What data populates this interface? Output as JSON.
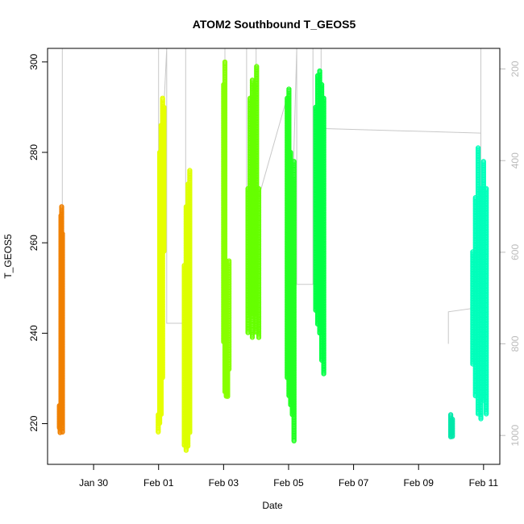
{
  "chart_data": {
    "type": "scatter",
    "title": "ATOM2 Southbound T_GEOS5",
    "xlabel": "Date",
    "ylabel": "T_GEOS5",
    "x_is_date": true,
    "xlim": [
      "2017-01-28T14:00",
      "2017-02-11T12:00"
    ],
    "ylim": [
      211,
      303
    ],
    "x_ticks": [
      {
        "value": "2017-01-30",
        "label": "Jan 30"
      },
      {
        "value": "2017-02-01",
        "label": "Feb 01"
      },
      {
        "value": "2017-02-03",
        "label": "Feb 03"
      },
      {
        "value": "2017-02-05",
        "label": "Feb 05"
      },
      {
        "value": "2017-02-07",
        "label": "Feb 07"
      },
      {
        "value": "2017-02-09",
        "label": "Feb 09"
      },
      {
        "value": "2017-02-11",
        "label": "Feb 11"
      }
    ],
    "y_ticks": [
      220,
      240,
      260,
      280,
      300
    ],
    "right_axis": {
      "label_color": "#bbbbbb",
      "lim": [
        1063,
        155
      ],
      "ticks": [
        200,
        400,
        600,
        800,
        1000
      ],
      "line_color": "#c8c8c8",
      "trace": [
        {
          "x": "2017-01-29T00:54",
          "y": 155
        },
        {
          "x": "2017-01-29T00:54",
          "y": 530
        },
        {
          "x": "2017-01-29T00:54",
          "y": 155
        },
        {
          "x": "2017-02-01T00:00",
          "y": 155
        },
        {
          "x": "2017-02-01T00:00",
          "y": 530
        },
        {
          "x": "2017-02-01T06:00",
          "y": 155
        },
        {
          "x": "2017-02-01T06:00",
          "y": 380
        },
        {
          "x": "2017-02-01T06:00",
          "y": 755
        },
        {
          "x": "2017-02-01T20:00",
          "y": 755
        },
        {
          "x": "2017-02-01T20:00",
          "y": 155
        },
        {
          "x": "2017-02-03T01:00",
          "y": 155
        },
        {
          "x": "2017-02-03T01:00",
          "y": 600
        },
        {
          "x": "2017-02-03T01:00",
          "y": 155
        },
        {
          "x": "2017-02-03T17:00",
          "y": 155
        },
        {
          "x": "2017-02-03T17:00",
          "y": 500
        },
        {
          "x": "2017-02-03T17:00",
          "y": 155
        },
        {
          "x": "2017-02-04T00:00",
          "y": 155
        },
        {
          "x": "2017-02-04T00:00",
          "y": 500
        },
        {
          "x": "2017-02-05T00:00",
          "y": 250
        },
        {
          "x": "2017-02-05T00:00",
          "y": 800
        },
        {
          "x": "2017-02-05T06:00",
          "y": 155
        },
        {
          "x": "2017-02-05T06:00",
          "y": 330
        },
        {
          "x": "2017-02-05T06:00",
          "y": 670
        },
        {
          "x": "2017-02-05T18:00",
          "y": 670
        },
        {
          "x": "2017-02-05T18:00",
          "y": 155
        },
        {
          "x": "2017-02-06T00:00",
          "y": 155
        },
        {
          "x": "2017-02-06T00:00",
          "y": 330
        },
        {
          "x": "2017-02-10T22:00",
          "y": 340
        },
        {
          "x": "2017-02-10T22:00",
          "y": 155
        },
        {
          "x": "2017-02-10T22:00",
          "y": 720
        },
        {
          "x": "2017-02-09T22:00",
          "y": 730
        },
        {
          "x": "2017-02-09T22:00",
          "y": 800
        }
      ]
    },
    "series": [
      {
        "color": "#f08000",
        "x_start": "2017-01-28T22:45",
        "x_end": "2017-01-29T01:00",
        "values": [
          [
            219,
            224
          ],
          [
            218,
            224
          ],
          [
            220,
            266
          ],
          [
            224,
            268
          ],
          [
            218,
            262
          ]
        ]
      },
      {
        "color": "#e6ff00",
        "x_start": "2017-01-31T23:45",
        "x_end": "2017-02-01T04:00",
        "values": [
          [
            218,
            222
          ],
          [
            220,
            280
          ],
          [
            222,
            286
          ],
          [
            230,
            292
          ],
          [
            258,
            290
          ]
        ]
      },
      {
        "color": "#ddff00",
        "x_start": "2017-02-01T19:00",
        "x_end": "2017-02-01T23:00",
        "values": [
          [
            215,
            255
          ],
          [
            214,
            268
          ],
          [
            215,
            273
          ],
          [
            218,
            276
          ]
        ]
      },
      {
        "color": "#88ff00",
        "x_start": "2017-02-03T00:00",
        "x_end": "2017-02-03T04:00",
        "values": [
          [
            238,
            295
          ],
          [
            227,
            300
          ],
          [
            226,
            256
          ],
          [
            226,
            232
          ],
          [
            232,
            256
          ]
        ]
      },
      {
        "color": "#66ff00",
        "x_start": "2017-02-03T18:00",
        "x_end": "2017-02-04T02:00",
        "values": [
          [
            240,
            272
          ],
          [
            244,
            292
          ],
          [
            239,
            296
          ],
          [
            244,
            295
          ],
          [
            240,
            299
          ],
          [
            239,
            272
          ]
        ]
      },
      {
        "color": "#22ff22",
        "x_start": "2017-02-04T23:00",
        "x_end": "2017-02-05T04:00",
        "values": [
          [
            230,
            292
          ],
          [
            226,
            294
          ],
          [
            224,
            280
          ],
          [
            222,
            274
          ],
          [
            216,
            278
          ]
        ]
      },
      {
        "color": "#00ff44",
        "x_start": "2017-02-05T20:00",
        "x_end": "2017-02-06T02:00",
        "values": [
          [
            245,
            290
          ],
          [
            242,
            297
          ],
          [
            240,
            298
          ],
          [
            234,
            295
          ],
          [
            231,
            292
          ]
        ]
      },
      {
        "color": "#00e8aa",
        "x_start": "2017-02-09T23:45",
        "x_end": "2017-02-10T01:00",
        "values": [
          [
            217,
            222
          ],
          [
            217,
            221
          ]
        ]
      },
      {
        "color": "#00ffbb",
        "x_start": "2017-02-10T16:00",
        "x_end": "2017-02-11T02:00",
        "values": [
          [
            233,
            258
          ],
          [
            226,
            270
          ],
          [
            222,
            281
          ],
          [
            221,
            272
          ],
          [
            225,
            278
          ],
          [
            222,
            272
          ]
        ]
      }
    ]
  }
}
